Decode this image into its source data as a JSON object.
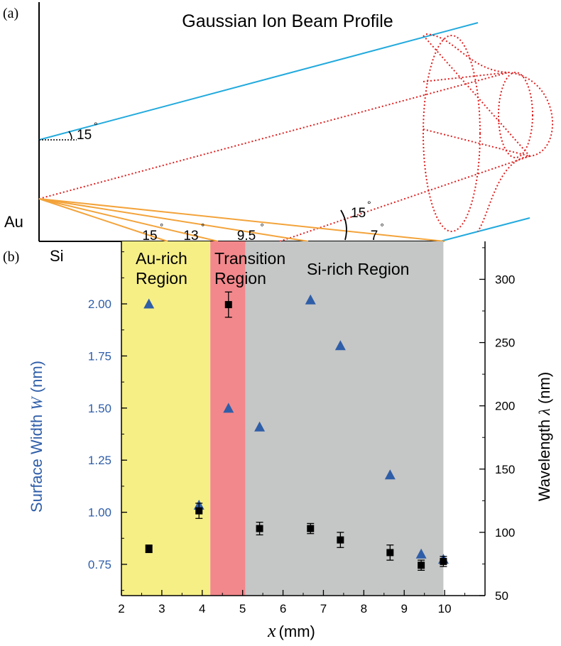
{
  "panel_a": {
    "tag": "(a)",
    "title": "Gaussian Ion Beam Profile",
    "angle_top": "15",
    "angle_mid": "15",
    "material_au": "Au",
    "material_si": "Si",
    "incidence_angles": [
      "15",
      "13",
      "9.5",
      "7"
    ],
    "degree_mark": "°",
    "colors": {
      "beam_edge": "#22aadd",
      "beam_dotted": "#e02020",
      "rays": "#f3a33a"
    }
  },
  "chart_data": {
    "type": "scatter",
    "tag": "(b)",
    "xlabel_var": "x",
    "xlabel_unit": "(mm)",
    "ylabel_left": "Surface Width W (nm)",
    "ylabel_left_prefix": "Surface Width ",
    "ylabel_left_var": "W",
    "ylabel_left_unit": " (nm)",
    "ylabel_right": "Wavelength λ (nm)",
    "ylabel_right_prefix": "Wavelength ",
    "ylabel_right_var": "λ",
    "ylabel_right_unit": " (nm)",
    "xlim": [
      2,
      11
    ],
    "ylim_left": [
      0.6,
      2.3
    ],
    "ylim_right": [
      50,
      330
    ],
    "xticks": [
      2,
      3,
      4,
      5,
      6,
      7,
      8,
      9,
      10
    ],
    "yticks_left": [
      "0.75",
      "1.00",
      "1.25",
      "1.50",
      "1.75",
      "2.00"
    ],
    "yticks_right": [
      50,
      100,
      150,
      200,
      250,
      300
    ],
    "regions": [
      {
        "label_lines": [
          "Au-rich",
          "Region"
        ],
        "x0": 2.0,
        "x1": 4.2,
        "color": "#f6ef86"
      },
      {
        "label_lines": [
          "Transition",
          "Region"
        ],
        "x0": 4.2,
        "x1": 5.07,
        "color": "#f2888c"
      },
      {
        "label_lines": [
          "Si-rich Region"
        ],
        "x0": 5.07,
        "x1": 9.97,
        "color": "#c5c6c6"
      }
    ],
    "series": [
      {
        "name": "Surface Width W",
        "axis": "left",
        "marker": "triangle",
        "color": "#2f5ea8",
        "points": [
          [
            2.68,
            2.0
          ],
          [
            3.92,
            1.035
          ],
          [
            4.65,
            1.5
          ],
          [
            5.42,
            1.41
          ],
          [
            6.68,
            2.02
          ],
          [
            7.42,
            1.8
          ],
          [
            8.65,
            1.18
          ],
          [
            9.42,
            0.8
          ],
          [
            9.97,
            0.775
          ]
        ]
      },
      {
        "name": "Wavelength λ",
        "axis": "right",
        "marker": "square",
        "color": "#000000",
        "points": [
          [
            2.68,
            87,
            3
          ],
          [
            3.92,
            117,
            6
          ],
          [
            4.65,
            280,
            10
          ],
          [
            5.42,
            103,
            5
          ],
          [
            6.68,
            103,
            4
          ],
          [
            7.42,
            94,
            6
          ],
          [
            8.65,
            84,
            6
          ],
          [
            9.42,
            74,
            4
          ],
          [
            9.97,
            77,
            4
          ]
        ]
      }
    ],
    "colors": {
      "left_axis": "#2f5ea8",
      "right_axis": "#000000"
    }
  }
}
